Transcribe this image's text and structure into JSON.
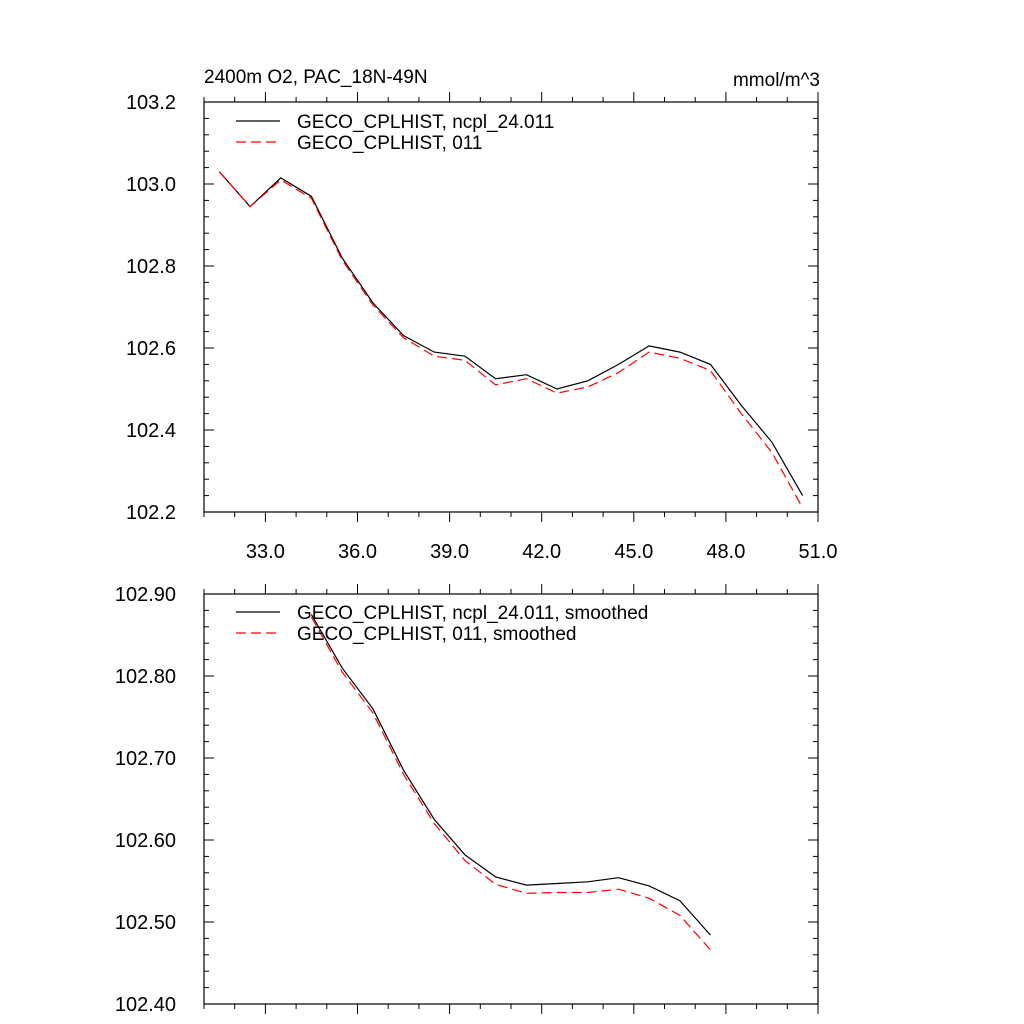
{
  "chart_data": [
    {
      "type": "line",
      "title_left": "2400m O2, PAC_18N-49N",
      "title_right": "mmol/m^3",
      "xlabel": "",
      "ylabel": "",
      "xlim": [
        31.0,
        51.0
      ],
      "ylim": [
        102.2,
        103.2
      ],
      "xticks": [
        "33.0",
        "36.0",
        "39.0",
        "42.0",
        "45.0",
        "48.0",
        "51.0"
      ],
      "yticks": [
        "102.2",
        "102.4",
        "102.6",
        "102.8",
        "103.0",
        "103.2"
      ],
      "legend_position": "top-left",
      "x": [
        31.5,
        32.5,
        33.5,
        34.5,
        35.5,
        36.5,
        37.5,
        38.5,
        39.5,
        40.5,
        41.5,
        42.5,
        43.5,
        44.5,
        45.5,
        46.5,
        47.5,
        48.5,
        49.5,
        50.5
      ],
      "series": [
        {
          "name": "GECO_CPLHIST, ncpl_24.011",
          "color": "#000000",
          "dash": "solid",
          "values": [
            103.03,
            102.945,
            103.015,
            102.97,
            102.82,
            102.71,
            102.63,
            102.59,
            102.58,
            102.525,
            102.535,
            102.5,
            102.52,
            102.56,
            102.605,
            102.59,
            102.56,
            102.46,
            102.37,
            102.24
          ]
        },
        {
          "name": "GECO_CPLHIST, 011",
          "color": "#ff0000",
          "dash": "dashed",
          "values": [
            103.03,
            102.945,
            103.01,
            102.965,
            102.815,
            102.705,
            102.625,
            102.58,
            102.57,
            102.51,
            102.525,
            102.49,
            102.505,
            102.54,
            102.59,
            102.575,
            102.545,
            102.44,
            102.345,
            102.21
          ]
        }
      ]
    },
    {
      "type": "line",
      "xlabel": "",
      "ylabel": "",
      "xlim": [
        31.0,
        51.0
      ],
      "ylim": [
        102.4,
        102.9
      ],
      "yticks": [
        "102.40",
        "102.50",
        "102.60",
        "102.70",
        "102.80",
        "102.90"
      ],
      "legend_position": "top-left",
      "x": [
        34.5,
        35.5,
        36.5,
        37.5,
        38.5,
        39.5,
        40.5,
        41.5,
        42.5,
        43.5,
        44.5,
        45.5,
        46.5,
        47.5
      ],
      "series": [
        {
          "name": "GECO_CPLHIST, ncpl_24.011, smoothed",
          "color": "#000000",
          "dash": "solid",
          "values": [
            102.875,
            102.81,
            102.76,
            102.685,
            102.625,
            102.582,
            102.555,
            102.545,
            102.547,
            102.549,
            102.554,
            102.544,
            102.526,
            102.484
          ]
        },
        {
          "name": "GECO_CPLHIST, 011, smoothed",
          "color": "#ff0000",
          "dash": "dashed",
          "values": [
            102.872,
            102.805,
            102.755,
            102.68,
            102.62,
            102.575,
            102.546,
            102.535,
            102.536,
            102.536,
            102.54,
            102.529,
            102.508,
            102.466
          ]
        }
      ]
    }
  ]
}
